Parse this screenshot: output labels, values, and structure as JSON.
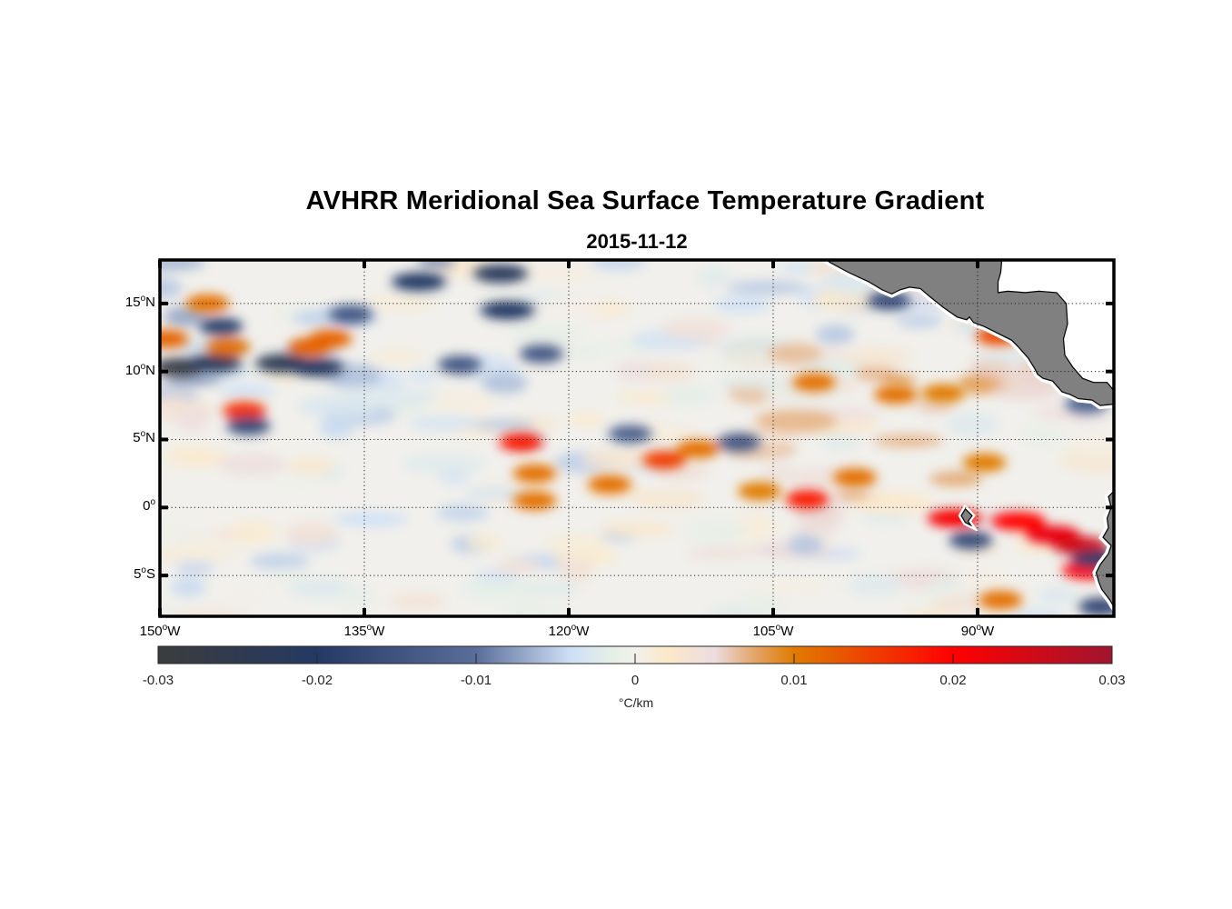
{
  "chart_data": {
    "type": "heatmap",
    "title": "AVHRR Meridional Sea Surface Temperature Gradient",
    "subtitle": "2015-11-12",
    "projection": "equirectangular",
    "lon_range": [
      -150,
      -80
    ],
    "lat_range": [
      -8,
      18.2
    ],
    "grid": "dotted",
    "x_ticks": [
      {
        "value": -150,
        "label": "150",
        "deg": "o",
        "hem": "W"
      },
      {
        "value": -135,
        "label": "135",
        "deg": "o",
        "hem": "W"
      },
      {
        "value": -120,
        "label": "120",
        "deg": "o",
        "hem": "W"
      },
      {
        "value": -105,
        "label": "105",
        "deg": "o",
        "hem": "W"
      },
      {
        "value": -90,
        "label": "90",
        "deg": "o",
        "hem": "W"
      }
    ],
    "y_ticks": [
      {
        "value": 15,
        "label": "15",
        "deg": "o",
        "hem": "N"
      },
      {
        "value": 10,
        "label": "10",
        "deg": "o",
        "hem": "N"
      },
      {
        "value": 5,
        "label": "5",
        "deg": "o",
        "hem": "N"
      },
      {
        "value": 0,
        "label": "0",
        "deg": "o",
        "hem": ""
      },
      {
        "value": -5,
        "label": "5",
        "deg": "o",
        "hem": "S"
      }
    ],
    "colorbar": {
      "range": [
        -0.03,
        0.03
      ],
      "ticks": [
        "-0.03",
        "-0.02",
        "-0.01",
        "0",
        "0.01",
        "0.02",
        "0.03"
      ],
      "tick_values": [
        -0.03,
        -0.02,
        -0.01,
        0,
        0.01,
        0.02,
        0.03
      ],
      "label": "°C/km",
      "orientation": "horizontal",
      "placement": "bottom",
      "colormap_stops": [
        {
          "value": -0.03,
          "color": "#3c3c3c"
        },
        {
          "value": -0.02,
          "color": "#243963"
        },
        {
          "value": -0.01,
          "color": "#5b6e9a"
        },
        {
          "value": -0.004,
          "color": "#cfe0f6"
        },
        {
          "value": -0.0015,
          "color": "#e5efe6"
        },
        {
          "value": 0,
          "color": "#f2f0ec"
        },
        {
          "value": 0.002,
          "color": "#fbe9c9"
        },
        {
          "value": 0.005,
          "color": "#ebdde0"
        },
        {
          "value": 0.0075,
          "color": "#e3a56a"
        },
        {
          "value": 0.01,
          "color": "#e07b00"
        },
        {
          "value": 0.02,
          "color": "#ff0000"
        },
        {
          "value": 0.03,
          "color": "#a0152f"
        }
      ]
    },
    "features": [
      {
        "lon": -148.5,
        "lat": 10.3,
        "value": -0.028
      },
      {
        "lon": -146,
        "lat": 10.6,
        "value": -0.022
      },
      {
        "lon": -141,
        "lat": 10.6,
        "value": -0.024
      },
      {
        "lon": -138.5,
        "lat": 10.3,
        "value": -0.021
      },
      {
        "lon": -145.5,
        "lat": 13.3,
        "value": -0.018
      },
      {
        "lon": -146.5,
        "lat": 15.0,
        "value": 0.011
      },
      {
        "lon": -149.5,
        "lat": 12.4,
        "value": 0.012
      },
      {
        "lon": -145,
        "lat": 11.8,
        "value": 0.011
      },
      {
        "lon": -139,
        "lat": 11.8,
        "value": 0.012
      },
      {
        "lon": -143.8,
        "lat": 7.1,
        "value": 0.016
      },
      {
        "lon": -143.5,
        "lat": 6.0,
        "value": -0.016
      },
      {
        "lon": -137.5,
        "lat": 12.4,
        "value": 0.012
      },
      {
        "lon": -136,
        "lat": 14.2,
        "value": -0.014
      },
      {
        "lon": -131,
        "lat": 16.6,
        "value": -0.02
      },
      {
        "lon": -125,
        "lat": 17.2,
        "value": -0.022
      },
      {
        "lon": -124.5,
        "lat": 14.5,
        "value": -0.02
      },
      {
        "lon": -128,
        "lat": 10.5,
        "value": -0.014
      },
      {
        "lon": -122,
        "lat": 11.3,
        "value": -0.014
      },
      {
        "lon": -123.5,
        "lat": 4.8,
        "value": 0.018
      },
      {
        "lon": -122.5,
        "lat": 2.5,
        "value": 0.011
      },
      {
        "lon": -122.5,
        "lat": 0.5,
        "value": 0.011
      },
      {
        "lon": -117,
        "lat": 1.7,
        "value": 0.011
      },
      {
        "lon": -113,
        "lat": 3.5,
        "value": 0.015
      },
      {
        "lon": -110.5,
        "lat": 4.3,
        "value": 0.011
      },
      {
        "lon": -106,
        "lat": 1.2,
        "value": 0.01
      },
      {
        "lon": -102.5,
        "lat": 0.6,
        "value": 0.018
      },
      {
        "lon": -99,
        "lat": 2.2,
        "value": 0.011
      },
      {
        "lon": -102,
        "lat": 9.2,
        "value": 0.011
      },
      {
        "lon": -96,
        "lat": 8.3,
        "value": 0.011
      },
      {
        "lon": -92.5,
        "lat": 8.4,
        "value": 0.01
      },
      {
        "lon": -88.5,
        "lat": 12.6,
        "value": 0.014
      },
      {
        "lon": -91.7,
        "lat": -0.8,
        "value": 0.021
      },
      {
        "lon": -89.5,
        "lat": 3.3,
        "value": 0.01
      },
      {
        "lon": -87,
        "lat": -1.0,
        "value": 0.02
      },
      {
        "lon": -84.5,
        "lat": -2.0,
        "value": 0.022
      },
      {
        "lon": -82.5,
        "lat": -2.8,
        "value": 0.025
      },
      {
        "lon": -81.8,
        "lat": -4.6,
        "value": 0.02
      },
      {
        "lon": -88.3,
        "lat": -6.8,
        "value": 0.011
      },
      {
        "lon": -107.5,
        "lat": 4.8,
        "value": -0.014
      },
      {
        "lon": -115.5,
        "lat": 5.4,
        "value": -0.012
      },
      {
        "lon": -90.5,
        "lat": -2.4,
        "value": -0.016
      },
      {
        "lon": -81.2,
        "lat": -3.8,
        "value": -0.019
      },
      {
        "lon": -81,
        "lat": -7.3,
        "value": -0.017
      },
      {
        "lon": -82,
        "lat": 7.6,
        "value": -0.012
      },
      {
        "lon": -96.5,
        "lat": 15.2,
        "value": -0.016
      }
    ],
    "land": [
      {
        "name": "Mexico / Central America",
        "color": "#808080"
      },
      {
        "name": "Galapagos",
        "color": "#808080"
      },
      {
        "name": "South America",
        "color": "#808080"
      }
    ]
  }
}
